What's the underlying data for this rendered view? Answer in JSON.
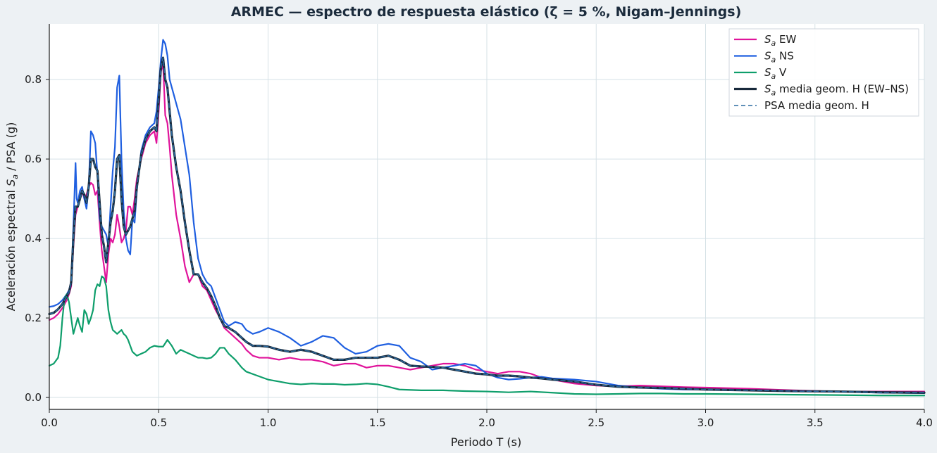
{
  "chart_data": {
    "type": "line",
    "title": "ARMEC — espectro de respuesta elástico (ζ = 5 %, Nigam–Jennings)",
    "xlabel": "Periodo T (s)",
    "ylabel_prefix": "Aceleración espectral ",
    "ylabel_var": "S",
    "ylabel_sub": "a",
    "ylabel_suffix": " / PSA (g)",
    "xlim": [
      0,
      4.0
    ],
    "ylim": [
      -0.03,
      0.94
    ],
    "xticks": [
      0,
      0.5,
      1.0,
      1.5,
      2.0,
      2.5,
      3.0,
      3.5,
      4.0
    ],
    "xtick_labels": [
      "0.0",
      "0.5",
      "1.0",
      "1.5",
      "2.0",
      "2.5",
      "3.0",
      "3.5",
      "4.0"
    ],
    "yticks": [
      0,
      0.2,
      0.4,
      0.6,
      0.8
    ],
    "ytick_labels": [
      "0.0",
      "0.2",
      "0.4",
      "0.6",
      "0.8"
    ],
    "grid": true,
    "legend_position": "top-right",
    "series": [
      {
        "name": "EW",
        "legend_var": "S",
        "legend_sub": "a",
        "legend_rest": " EW",
        "color": "#e0149b",
        "dash": "solid",
        "x": [
          0.0,
          0.02,
          0.04,
          0.06,
          0.08,
          0.09,
          0.1,
          0.11,
          0.12,
          0.13,
          0.14,
          0.15,
          0.16,
          0.17,
          0.18,
          0.19,
          0.2,
          0.21,
          0.22,
          0.23,
          0.24,
          0.25,
          0.26,
          0.27,
          0.28,
          0.29,
          0.3,
          0.31,
          0.32,
          0.33,
          0.34,
          0.35,
          0.36,
          0.37,
          0.38,
          0.39,
          0.4,
          0.42,
          0.44,
          0.46,
          0.48,
          0.49,
          0.5,
          0.51,
          0.52,
          0.53,
          0.54,
          0.55,
          0.56,
          0.58,
          0.6,
          0.62,
          0.64,
          0.66,
          0.68,
          0.7,
          0.72,
          0.74,
          0.76,
          0.78,
          0.8,
          0.82,
          0.85,
          0.88,
          0.9,
          0.93,
          0.96,
          1.0,
          1.05,
          1.1,
          1.15,
          1.2,
          1.25,
          1.3,
          1.35,
          1.4,
          1.45,
          1.5,
          1.55,
          1.6,
          1.65,
          1.7,
          1.75,
          1.8,
          1.85,
          1.9,
          1.95,
          2.0,
          2.05,
          2.1,
          2.15,
          2.2,
          2.25,
          2.3,
          2.4,
          2.5,
          2.6,
          2.7,
          2.8,
          2.9,
          3.0,
          3.2,
          3.4,
          3.6,
          3.8,
          4.0
        ],
        "values": [
          0.195,
          0.2,
          0.21,
          0.225,
          0.245,
          0.26,
          0.28,
          0.38,
          0.46,
          0.48,
          0.5,
          0.52,
          0.5,
          0.51,
          0.53,
          0.54,
          0.535,
          0.51,
          0.52,
          0.44,
          0.37,
          0.33,
          0.29,
          0.36,
          0.4,
          0.39,
          0.41,
          0.46,
          0.43,
          0.39,
          0.4,
          0.42,
          0.48,
          0.48,
          0.46,
          0.5,
          0.55,
          0.6,
          0.64,
          0.66,
          0.67,
          0.64,
          0.72,
          0.82,
          0.84,
          0.71,
          0.69,
          0.63,
          0.56,
          0.46,
          0.4,
          0.33,
          0.29,
          0.31,
          0.31,
          0.28,
          0.27,
          0.245,
          0.22,
          0.2,
          0.175,
          0.165,
          0.15,
          0.135,
          0.12,
          0.105,
          0.1,
          0.1,
          0.095,
          0.1,
          0.095,
          0.095,
          0.09,
          0.08,
          0.085,
          0.085,
          0.075,
          0.08,
          0.08,
          0.075,
          0.07,
          0.075,
          0.08,
          0.085,
          0.085,
          0.08,
          0.07,
          0.065,
          0.06,
          0.065,
          0.065,
          0.06,
          0.05,
          0.045,
          0.035,
          0.03,
          0.028,
          0.03,
          0.028,
          0.026,
          0.025,
          0.022,
          0.018,
          0.015,
          0.015,
          0.015
        ]
      },
      {
        "name": "NS",
        "legend_var": "S",
        "legend_sub": "a",
        "legend_rest": " NS",
        "color": "#1f5fe0",
        "dash": "solid",
        "x": [
          0.0,
          0.02,
          0.04,
          0.06,
          0.08,
          0.09,
          0.1,
          0.11,
          0.12,
          0.125,
          0.13,
          0.14,
          0.15,
          0.16,
          0.17,
          0.18,
          0.19,
          0.2,
          0.21,
          0.22,
          0.23,
          0.24,
          0.25,
          0.26,
          0.27,
          0.28,
          0.29,
          0.3,
          0.31,
          0.32,
          0.33,
          0.34,
          0.35,
          0.36,
          0.37,
          0.38,
          0.39,
          0.4,
          0.42,
          0.44,
          0.46,
          0.48,
          0.49,
          0.5,
          0.51,
          0.52,
          0.53,
          0.54,
          0.55,
          0.56,
          0.58,
          0.6,
          0.62,
          0.64,
          0.66,
          0.68,
          0.7,
          0.72,
          0.74,
          0.76,
          0.78,
          0.8,
          0.82,
          0.85,
          0.88,
          0.9,
          0.93,
          0.96,
          1.0,
          1.05,
          1.1,
          1.15,
          1.2,
          1.25,
          1.3,
          1.35,
          1.4,
          1.45,
          1.5,
          1.55,
          1.6,
          1.65,
          1.7,
          1.75,
          1.8,
          1.85,
          1.9,
          1.95,
          2.0,
          2.05,
          2.1,
          2.15,
          2.2,
          2.25,
          2.3,
          2.4,
          2.5,
          2.6,
          2.7,
          2.8,
          2.9,
          3.0,
          3.2,
          3.4,
          3.6,
          3.8,
          4.0
        ],
        "values": [
          0.228,
          0.23,
          0.235,
          0.245,
          0.26,
          0.27,
          0.29,
          0.43,
          0.59,
          0.5,
          0.49,
          0.52,
          0.53,
          0.5,
          0.475,
          0.53,
          0.67,
          0.66,
          0.64,
          0.56,
          0.45,
          0.43,
          0.42,
          0.41,
          0.38,
          0.48,
          0.57,
          0.63,
          0.78,
          0.81,
          0.6,
          0.47,
          0.4,
          0.37,
          0.36,
          0.45,
          0.44,
          0.52,
          0.62,
          0.66,
          0.68,
          0.69,
          0.72,
          0.78,
          0.85,
          0.9,
          0.89,
          0.86,
          0.8,
          0.78,
          0.74,
          0.7,
          0.63,
          0.56,
          0.44,
          0.35,
          0.31,
          0.29,
          0.28,
          0.25,
          0.22,
          0.19,
          0.18,
          0.19,
          0.185,
          0.17,
          0.16,
          0.165,
          0.175,
          0.165,
          0.15,
          0.13,
          0.14,
          0.155,
          0.15,
          0.125,
          0.11,
          0.115,
          0.13,
          0.135,
          0.13,
          0.1,
          0.09,
          0.07,
          0.075,
          0.08,
          0.085,
          0.08,
          0.06,
          0.05,
          0.045,
          0.047,
          0.05,
          0.052,
          0.048,
          0.045,
          0.04,
          0.03,
          0.025,
          0.022,
          0.02,
          0.02,
          0.018,
          0.016,
          0.015,
          0.012,
          0.011
        ]
      },
      {
        "name": "V",
        "legend_var": "S",
        "legend_sub": "a",
        "legend_rest": " V",
        "color": "#0e9e6b",
        "dash": "solid",
        "x": [
          0.0,
          0.02,
          0.04,
          0.05,
          0.06,
          0.07,
          0.08,
          0.09,
          0.1,
          0.11,
          0.12,
          0.13,
          0.14,
          0.15,
          0.16,
          0.17,
          0.18,
          0.19,
          0.2,
          0.21,
          0.22,
          0.23,
          0.24,
          0.25,
          0.26,
          0.27,
          0.28,
          0.29,
          0.3,
          0.31,
          0.32,
          0.33,
          0.34,
          0.35,
          0.36,
          0.37,
          0.38,
          0.39,
          0.4,
          0.42,
          0.44,
          0.46,
          0.48,
          0.5,
          0.52,
          0.54,
          0.56,
          0.58,
          0.6,
          0.62,
          0.64,
          0.66,
          0.68,
          0.7,
          0.72,
          0.74,
          0.76,
          0.78,
          0.8,
          0.82,
          0.85,
          0.88,
          0.9,
          0.95,
          1.0,
          1.05,
          1.1,
          1.15,
          1.2,
          1.25,
          1.3,
          1.35,
          1.4,
          1.45,
          1.5,
          1.55,
          1.6,
          1.7,
          1.8,
          1.9,
          2.0,
          2.1,
          2.2,
          2.3,
          2.4,
          2.5,
          2.6,
          2.7,
          2.8,
          2.9,
          3.0,
          3.2,
          3.4,
          3.6,
          3.8,
          4.0
        ],
        "values": [
          0.08,
          0.085,
          0.1,
          0.13,
          0.2,
          0.25,
          0.26,
          0.24,
          0.2,
          0.16,
          0.18,
          0.2,
          0.18,
          0.165,
          0.22,
          0.21,
          0.185,
          0.2,
          0.22,
          0.27,
          0.285,
          0.28,
          0.305,
          0.3,
          0.28,
          0.22,
          0.19,
          0.17,
          0.165,
          0.16,
          0.165,
          0.17,
          0.16,
          0.155,
          0.145,
          0.13,
          0.115,
          0.11,
          0.105,
          0.11,
          0.115,
          0.125,
          0.13,
          0.128,
          0.128,
          0.145,
          0.13,
          0.11,
          0.12,
          0.115,
          0.11,
          0.105,
          0.1,
          0.1,
          0.098,
          0.1,
          0.11,
          0.125,
          0.125,
          0.11,
          0.095,
          0.075,
          0.065,
          0.055,
          0.045,
          0.04,
          0.035,
          0.033,
          0.035,
          0.034,
          0.034,
          0.032,
          0.033,
          0.035,
          0.033,
          0.027,
          0.02,
          0.018,
          0.018,
          0.016,
          0.015,
          0.013,
          0.015,
          0.012,
          0.009,
          0.008,
          0.009,
          0.01,
          0.01,
          0.009,
          0.009,
          0.008,
          0.007,
          0.006,
          0.005,
          0.005
        ]
      },
      {
        "name": "media geom. H (EW–NS)",
        "legend_var": "S",
        "legend_sub": "a",
        "legend_rest": " media geom. H (EW–NS)",
        "color": "#18293b",
        "dash": "solid",
        "x": [
          0.0,
          0.02,
          0.04,
          0.06,
          0.08,
          0.09,
          0.1,
          0.11,
          0.12,
          0.13,
          0.14,
          0.15,
          0.16,
          0.17,
          0.18,
          0.19,
          0.2,
          0.21,
          0.22,
          0.23,
          0.24,
          0.25,
          0.26,
          0.27,
          0.28,
          0.29,
          0.3,
          0.31,
          0.32,
          0.33,
          0.34,
          0.35,
          0.36,
          0.37,
          0.38,
          0.39,
          0.4,
          0.42,
          0.44,
          0.46,
          0.48,
          0.49,
          0.5,
          0.51,
          0.52,
          0.53,
          0.54,
          0.55,
          0.56,
          0.58,
          0.6,
          0.62,
          0.64,
          0.66,
          0.68,
          0.7,
          0.72,
          0.74,
          0.76,
          0.78,
          0.8,
          0.82,
          0.85,
          0.88,
          0.9,
          0.93,
          0.96,
          1.0,
          1.05,
          1.1,
          1.15,
          1.2,
          1.25,
          1.3,
          1.35,
          1.4,
          1.45,
          1.5,
          1.55,
          1.6,
          1.65,
          1.7,
          1.75,
          1.8,
          1.85,
          1.9,
          1.95,
          2.0,
          2.05,
          2.1,
          2.15,
          2.2,
          2.25,
          2.3,
          2.4,
          2.5,
          2.6,
          2.7,
          2.8,
          2.9,
          3.0,
          3.2,
          3.4,
          3.6,
          3.8,
          4.0
        ],
        "values": [
          0.21,
          0.213,
          0.222,
          0.235,
          0.255,
          0.265,
          0.29,
          0.4,
          0.48,
          0.48,
          0.5,
          0.52,
          0.51,
          0.49,
          0.53,
          0.6,
          0.6,
          0.58,
          0.57,
          0.49,
          0.41,
          0.38,
          0.34,
          0.39,
          0.44,
          0.47,
          0.52,
          0.6,
          0.61,
          0.5,
          0.43,
          0.41,
          0.42,
          0.43,
          0.45,
          0.47,
          0.53,
          0.61,
          0.65,
          0.67,
          0.68,
          0.67,
          0.75,
          0.83,
          0.855,
          0.8,
          0.78,
          0.72,
          0.66,
          0.58,
          0.52,
          0.44,
          0.37,
          0.31,
          0.31,
          0.29,
          0.275,
          0.255,
          0.23,
          0.2,
          0.18,
          0.175,
          0.165,
          0.15,
          0.14,
          0.13,
          0.13,
          0.128,
          0.12,
          0.115,
          0.12,
          0.115,
          0.105,
          0.095,
          0.095,
          0.1,
          0.1,
          0.1,
          0.105,
          0.095,
          0.08,
          0.078,
          0.077,
          0.075,
          0.07,
          0.065,
          0.06,
          0.058,
          0.055,
          0.055,
          0.053,
          0.05,
          0.048,
          0.045,
          0.04,
          0.032,
          0.027,
          0.025,
          0.024,
          0.022,
          0.02,
          0.018,
          0.016,
          0.015,
          0.013,
          0.012
        ]
      },
      {
        "name": "PSA media geom. H",
        "legend_var": "",
        "legend_sub": "",
        "legend_rest": "PSA media geom. H",
        "color": "#2c6ba0",
        "dash": "dashed",
        "x": [
          0.0,
          0.02,
          0.04,
          0.06,
          0.08,
          0.09,
          0.1,
          0.11,
          0.12,
          0.13,
          0.14,
          0.15,
          0.16,
          0.17,
          0.18,
          0.19,
          0.2,
          0.21,
          0.22,
          0.23,
          0.24,
          0.25,
          0.26,
          0.27,
          0.28,
          0.29,
          0.3,
          0.31,
          0.32,
          0.33,
          0.34,
          0.35,
          0.36,
          0.37,
          0.38,
          0.39,
          0.4,
          0.42,
          0.44,
          0.46,
          0.48,
          0.49,
          0.5,
          0.51,
          0.52,
          0.53,
          0.54,
          0.55,
          0.56,
          0.58,
          0.6,
          0.62,
          0.64,
          0.66,
          0.68,
          0.7,
          0.72,
          0.74,
          0.76,
          0.78,
          0.8,
          0.82,
          0.85,
          0.88,
          0.9,
          0.93,
          0.96,
          1.0,
          1.05,
          1.1,
          1.15,
          1.2,
          1.25,
          1.3,
          1.35,
          1.4,
          1.45,
          1.5,
          1.55,
          1.6,
          1.65,
          1.7,
          1.75,
          1.8,
          1.85,
          1.9,
          1.95,
          2.0,
          2.05,
          2.1,
          2.15,
          2.2,
          2.25,
          2.3,
          2.4,
          2.5,
          2.6,
          2.7,
          2.8,
          2.9,
          3.0,
          3.2,
          3.4,
          3.6,
          3.8,
          4.0
        ],
        "values": [
          0.21,
          0.213,
          0.222,
          0.235,
          0.255,
          0.265,
          0.29,
          0.4,
          0.48,
          0.48,
          0.5,
          0.52,
          0.51,
          0.49,
          0.53,
          0.6,
          0.6,
          0.58,
          0.57,
          0.49,
          0.41,
          0.38,
          0.34,
          0.39,
          0.44,
          0.47,
          0.52,
          0.6,
          0.61,
          0.5,
          0.43,
          0.41,
          0.42,
          0.43,
          0.45,
          0.47,
          0.53,
          0.61,
          0.65,
          0.67,
          0.68,
          0.67,
          0.75,
          0.83,
          0.855,
          0.8,
          0.78,
          0.72,
          0.66,
          0.58,
          0.52,
          0.44,
          0.37,
          0.31,
          0.31,
          0.29,
          0.275,
          0.255,
          0.23,
          0.2,
          0.18,
          0.175,
          0.165,
          0.15,
          0.14,
          0.13,
          0.13,
          0.128,
          0.12,
          0.115,
          0.12,
          0.115,
          0.105,
          0.095,
          0.095,
          0.1,
          0.1,
          0.1,
          0.105,
          0.095,
          0.08,
          0.078,
          0.077,
          0.075,
          0.07,
          0.065,
          0.06,
          0.058,
          0.055,
          0.055,
          0.053,
          0.05,
          0.048,
          0.045,
          0.04,
          0.032,
          0.027,
          0.025,
          0.024,
          0.022,
          0.02,
          0.018,
          0.016,
          0.015,
          0.013,
          0.012
        ]
      }
    ]
  }
}
